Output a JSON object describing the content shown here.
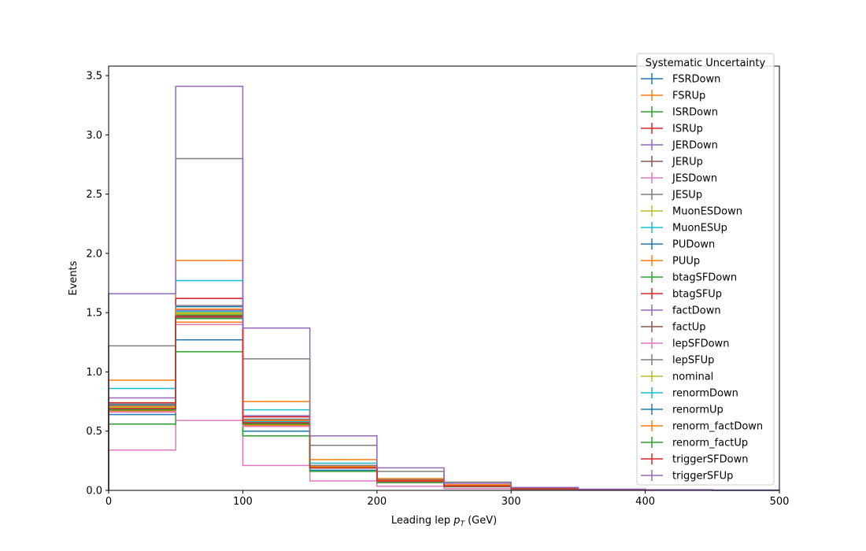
{
  "chart_data": {
    "type": "line",
    "style": "step-histogram",
    "xlabel": "Leading lep",
    "xlabel_math": "p",
    "xlabel_sub": "T",
    "xlabel_unit": "(GeV)",
    "ylabel": "Events",
    "xlim": [
      0,
      500
    ],
    "ylim": [
      0,
      3.58
    ],
    "x_ticks": [
      0,
      100,
      200,
      300,
      400,
      500
    ],
    "y_ticks": [
      0.0,
      0.5,
      1.0,
      1.5,
      2.0,
      2.5,
      3.0,
      3.5
    ],
    "x_tick_labels": [
      "0",
      "100",
      "200",
      "300",
      "400",
      "500"
    ],
    "y_tick_labels": [
      "0.0",
      "0.5",
      "1.0",
      "1.5",
      "2.0",
      "2.5",
      "3.0",
      "3.5"
    ],
    "bin_edges": [
      0,
      50,
      100,
      150,
      200,
      250,
      300,
      350,
      400,
      450,
      500
    ],
    "grid": false,
    "legend_title": "Systematic Uncertainty",
    "legend_position": "top-right",
    "series": [
      {
        "name": "FSRDown",
        "color": "#1f77b4",
        "values": [
          0.72,
          1.55,
          0.6,
          0.2,
          0.08,
          0.04,
          0.015,
          0.006,
          0.003,
          0.002
        ]
      },
      {
        "name": "FSRUp",
        "color": "#ff7f0e",
        "values": [
          0.67,
          1.42,
          0.55,
          0.19,
          0.075,
          0.035,
          0.013,
          0.006,
          0.003,
          0.002
        ]
      },
      {
        "name": "ISRDown",
        "color": "#2ca02c",
        "values": [
          0.68,
          1.48,
          0.57,
          0.19,
          0.08,
          0.036,
          0.014,
          0.006,
          0.003,
          0.002
        ]
      },
      {
        "name": "ISRUp",
        "color": "#d62728",
        "values": [
          0.7,
          1.5,
          0.58,
          0.2,
          0.08,
          0.037,
          0.014,
          0.006,
          0.003,
          0.002
        ]
      },
      {
        "name": "JERDown",
        "color": "#9467bd",
        "values": [
          0.78,
          1.62,
          0.63,
          0.21,
          0.085,
          0.04,
          0.015,
          0.006,
          0.003,
          0.002
        ]
      },
      {
        "name": "JERUp",
        "color": "#8c564b",
        "values": [
          0.69,
          1.47,
          0.56,
          0.19,
          0.078,
          0.036,
          0.014,
          0.006,
          0.003,
          0.002
        ]
      },
      {
        "name": "JESDown",
        "color": "#e377c2",
        "values": [
          0.34,
          0.59,
          0.21,
          0.08,
          0.035,
          0.015,
          0.006,
          0.003,
          0.001,
          0.001
        ]
      },
      {
        "name": "JESUp",
        "color": "#7f7f7f",
        "values": [
          1.22,
          2.8,
          1.11,
          0.38,
          0.16,
          0.07,
          0.025,
          0.01,
          0.005,
          0.002
        ]
      },
      {
        "name": "MuonESDown",
        "color": "#bcbd22",
        "values": [
          0.7,
          1.5,
          0.58,
          0.2,
          0.08,
          0.037,
          0.014,
          0.006,
          0.003,
          0.002
        ]
      },
      {
        "name": "MuonESUp",
        "color": "#17becf",
        "values": [
          0.86,
          1.77,
          0.68,
          0.23,
          0.095,
          0.043,
          0.016,
          0.007,
          0.003,
          0.002
        ]
      },
      {
        "name": "PUDown",
        "color": "#1f77b4",
        "values": [
          0.64,
          1.27,
          0.5,
          0.17,
          0.07,
          0.032,
          0.012,
          0.005,
          0.002,
          0.001
        ]
      },
      {
        "name": "PUUp",
        "color": "#ff7f0e",
        "values": [
          0.93,
          1.94,
          0.75,
          0.26,
          0.1,
          0.047,
          0.018,
          0.008,
          0.003,
          0.002
        ]
      },
      {
        "name": "btagSFDown",
        "color": "#2ca02c",
        "values": [
          0.56,
          1.17,
          0.46,
          0.16,
          0.065,
          0.03,
          0.011,
          0.005,
          0.002,
          0.001
        ]
      },
      {
        "name": "btagSFUp",
        "color": "#d62728",
        "values": [
          0.74,
          1.62,
          0.62,
          0.21,
          0.087,
          0.04,
          0.015,
          0.006,
          0.003,
          0.002
        ]
      },
      {
        "name": "factDown",
        "color": "#9467bd",
        "values": [
          0.7,
          1.52,
          0.59,
          0.2,
          0.081,
          0.037,
          0.014,
          0.006,
          0.003,
          0.002
        ]
      },
      {
        "name": "factUp",
        "color": "#8c564b",
        "values": [
          0.68,
          1.46,
          0.56,
          0.19,
          0.078,
          0.036,
          0.014,
          0.006,
          0.003,
          0.002
        ]
      },
      {
        "name": "lepSFDown",
        "color": "#e377c2",
        "values": [
          0.66,
          1.4,
          0.54,
          0.19,
          0.075,
          0.034,
          0.013,
          0.005,
          0.003,
          0.002
        ]
      },
      {
        "name": "lepSFUp",
        "color": "#7f7f7f",
        "values": [
          0.73,
          1.56,
          0.6,
          0.21,
          0.084,
          0.038,
          0.015,
          0.006,
          0.003,
          0.002
        ]
      },
      {
        "name": "nominal",
        "color": "#bcbd22",
        "values": [
          0.7,
          1.49,
          0.58,
          0.2,
          0.08,
          0.037,
          0.014,
          0.006,
          0.003,
          0.002
        ]
      },
      {
        "name": "renormDown",
        "color": "#17becf",
        "values": [
          0.71,
          1.51,
          0.58,
          0.2,
          0.081,
          0.037,
          0.014,
          0.006,
          0.003,
          0.002
        ]
      },
      {
        "name": "renormUp",
        "color": "#1f77b4",
        "values": [
          0.69,
          1.47,
          0.57,
          0.19,
          0.079,
          0.036,
          0.014,
          0.006,
          0.003,
          0.002
        ]
      },
      {
        "name": "renorm_factDown",
        "color": "#ff7f0e",
        "values": [
          0.71,
          1.53,
          0.59,
          0.2,
          0.082,
          0.038,
          0.014,
          0.006,
          0.003,
          0.002
        ]
      },
      {
        "name": "renorm_factUp",
        "color": "#2ca02c",
        "values": [
          0.68,
          1.45,
          0.56,
          0.19,
          0.078,
          0.036,
          0.014,
          0.006,
          0.003,
          0.002
        ]
      },
      {
        "name": "triggerSFDown",
        "color": "#d62728",
        "values": [
          0.69,
          1.47,
          0.57,
          0.19,
          0.079,
          0.036,
          0.014,
          0.006,
          0.003,
          0.002
        ]
      },
      {
        "name": "triggerSFUp",
        "color": "#9467bd",
        "values": [
          1.66,
          3.41,
          1.37,
          0.46,
          0.19,
          0.06,
          0.025,
          0.01,
          0.006,
          0.003
        ]
      }
    ]
  }
}
